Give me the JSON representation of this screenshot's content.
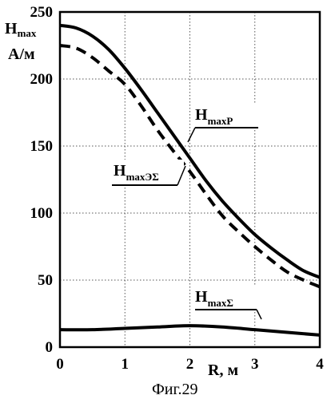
{
  "figure": {
    "caption": "Фиг.29"
  },
  "chart_data": {
    "type": "line",
    "ylabel_main": "H",
    "ylabel_sub": "max",
    "ylabel_unit": "А/м",
    "xlabel": "R, м",
    "xlim": [
      0,
      4
    ],
    "ylim": [
      0,
      250
    ],
    "x_ticks": [
      "0",
      "1",
      "2",
      "3",
      "4"
    ],
    "y_ticks": [
      "0",
      "50",
      "100",
      "150",
      "200",
      "250"
    ],
    "x_tick_values": [
      0,
      1,
      2,
      3,
      4
    ],
    "y_tick_values": [
      0,
      50,
      100,
      150,
      200,
      250
    ],
    "grid": true,
    "series": [
      {
        "name_main": "H",
        "name_sub": "maxP",
        "style": "solid",
        "x": [
          0,
          0.25,
          0.5,
          0.75,
          1.0,
          1.25,
          1.5,
          1.75,
          2.0,
          2.25,
          2.5,
          2.75,
          3.0,
          3.25,
          3.5,
          3.75,
          4.0
        ],
        "y": [
          240,
          238,
          232,
          222,
          208,
          192,
          175,
          158,
          141,
          124,
          109,
          96,
          84,
          74,
          65,
          57,
          52
        ]
      },
      {
        "name_main": "H",
        "name_sub": "maxЭΣ",
        "style": "dashed",
        "x": [
          0,
          0.25,
          0.5,
          0.75,
          1.0,
          1.25,
          1.5,
          1.75,
          2.0,
          2.25,
          2.5,
          2.75,
          3.0,
          3.25,
          3.5,
          3.75,
          4.0
        ],
        "y": [
          225,
          223,
          216,
          206,
          196,
          180,
          162,
          146,
          131,
          114,
          98,
          86,
          75,
          65,
          56,
          50,
          45
        ]
      },
      {
        "name_main": "H",
        "name_sub": "maxΣ",
        "style": "solid",
        "x": [
          0,
          0.5,
          1.0,
          1.5,
          2.0,
          2.5,
          3.0,
          3.5,
          4.0
        ],
        "y": [
          13,
          13,
          14,
          15,
          16,
          15,
          13,
          11,
          9
        ]
      }
    ]
  }
}
